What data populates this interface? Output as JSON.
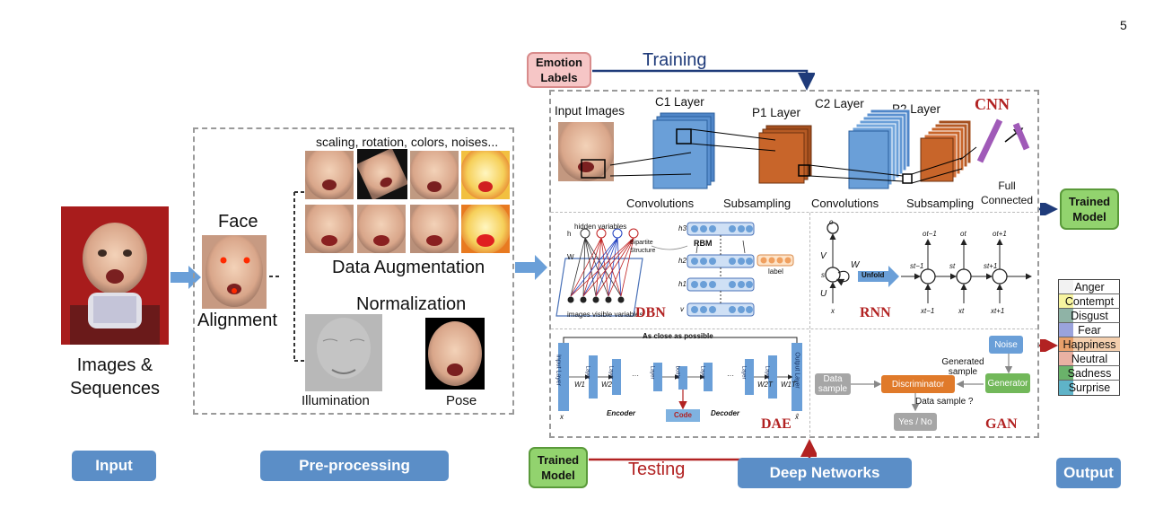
{
  "page_number": "5",
  "stages": {
    "input": "Input",
    "preprocessing": "Pre-processing",
    "deep_networks": "Deep Networks",
    "output": "Output"
  },
  "input": {
    "caption": "Images & Sequences"
  },
  "preprocessing": {
    "face_label": "Face",
    "alignment_label": "Alignment",
    "augmentation_caption": "scaling, rotation, colors, noises...",
    "augmentation_label": "Data Augmentation",
    "normalization_label": "Normalization",
    "illumination_label": "Illumination",
    "pose_label": "Pose"
  },
  "training": {
    "emotion_labels": "Emotion Labels",
    "training_label": "Training",
    "trained_model": "Trained Model",
    "testing_label": "Testing",
    "trained_model_bottom": "Trained Model"
  },
  "cnn": {
    "title": "CNN",
    "input_images": "Input Images",
    "c1": "C1 Layer",
    "p1": "P1 Layer",
    "c2": "C2 Layer",
    "p2": "P2 Layer",
    "conv1": "Convolutions",
    "sub1": "Subsampling",
    "conv2": "Convolutions",
    "sub2": "Subsampling",
    "full": "Full Connected"
  },
  "dbn": {
    "title": "DBN",
    "hidden": "hidden variables",
    "bipartite": "Bipartite Structure",
    "visible": "visible variables",
    "images": "images",
    "rbm": "RBM",
    "label": "label",
    "h3": "h3",
    "h2": "h2",
    "h1": "h1",
    "v": "v",
    "w": "W",
    "h": "h"
  },
  "rnn": {
    "title": "RNN",
    "unfold": "Unfold",
    "o": "o",
    "v": "V",
    "w": "W",
    "s": "s",
    "u": "U",
    "x": "x",
    "o_prev": "ot−1",
    "o_t": "ot",
    "o_next": "ot+1",
    "s_prev": "st−1",
    "s_t": "st",
    "s_next": "st+1",
    "x_prev": "xt−1",
    "x_t": "xt",
    "x_next": "xt+1"
  },
  "dae": {
    "title": "DAE",
    "as_close": "As close as possible",
    "input_layer": "Input Layer",
    "layer": "Layer",
    "bottle": "bottle",
    "output_layer": "Output Layer",
    "code": "Code",
    "encoder": "Encoder",
    "decoder": "Decoder",
    "w1": "W1",
    "w2": "W2",
    "w2t": "W2T",
    "w1t": "W1T",
    "x": "x",
    "x_hat": "x̂",
    "dots": "···"
  },
  "gan": {
    "title": "GAN",
    "noise": "Noise",
    "generated_sample": "Generated sample",
    "data_sample": "Data sample",
    "discriminator": "Discriminator",
    "generator": "Generator",
    "data_sample_q": "Data sample ?",
    "yes_no": "Yes / No"
  },
  "output_emotions": [
    {
      "name": "Anger",
      "color": "#f2f2f2"
    },
    {
      "name": "Contempt",
      "color": "#f7f4a0"
    },
    {
      "name": "Disgust",
      "color": "#8fb3a6"
    },
    {
      "name": "Fear",
      "color": "#9aa3dc"
    },
    {
      "name": "Happiness",
      "color": "#e8a06a"
    },
    {
      "name": "Neutral",
      "color": "#e9b1a3"
    },
    {
      "name": "Sadness",
      "color": "#6ab26a"
    },
    {
      "name": "Surprise",
      "color": "#5fb3c8"
    }
  ],
  "colors": {
    "stage_blue": "#5b8ec7",
    "training_blue": "#1f3b7a",
    "testing_red": "#b22222",
    "cnn_blue": "#6a9fd8",
    "cnn_orange": "#c8652a"
  }
}
